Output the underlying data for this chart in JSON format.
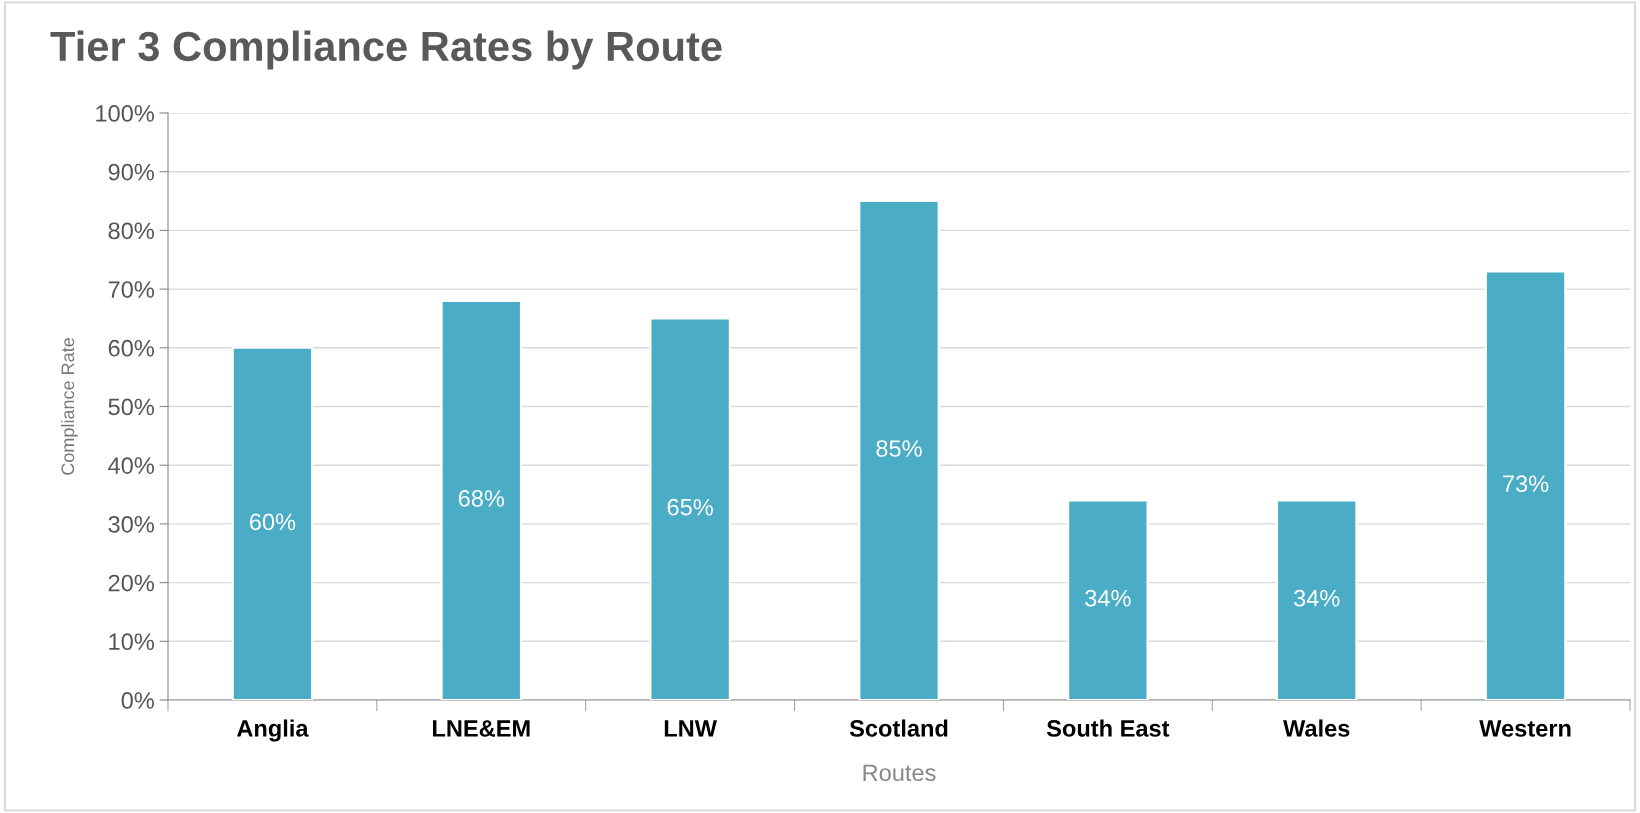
{
  "chart_data": {
    "type": "bar",
    "title": "Tier 3 Compliance Rates by Route",
    "xlabel": "Routes",
    "ylabel": "Compliance Rate",
    "categories": [
      "Anglia",
      "LNE&EM",
      "LNW",
      "Scotland",
      "South East",
      "Wales",
      "Western"
    ],
    "values": [
      60,
      68,
      65,
      85,
      34,
      34,
      73
    ],
    "value_labels": [
      "60%",
      "68%",
      "65%",
      "85%",
      "34%",
      "34%",
      "73%"
    ],
    "color": "#4bacc6",
    "ylim": [
      0,
      100
    ],
    "yticks": [
      {
        "value": 0,
        "label": "0%"
      },
      {
        "value": 10,
        "label": "10%"
      },
      {
        "value": 20,
        "label": "20%"
      },
      {
        "value": 30,
        "label": "30%"
      },
      {
        "value": 40,
        "label": "40%"
      },
      {
        "value": 50,
        "label": "50%"
      },
      {
        "value": 60,
        "label": "60%"
      },
      {
        "value": 70,
        "label": "70%"
      },
      {
        "value": 80,
        "label": "80%"
      },
      {
        "value": 90,
        "label": "90%"
      },
      {
        "value": 100,
        "label": "100%"
      }
    ],
    "grid": "y"
  }
}
